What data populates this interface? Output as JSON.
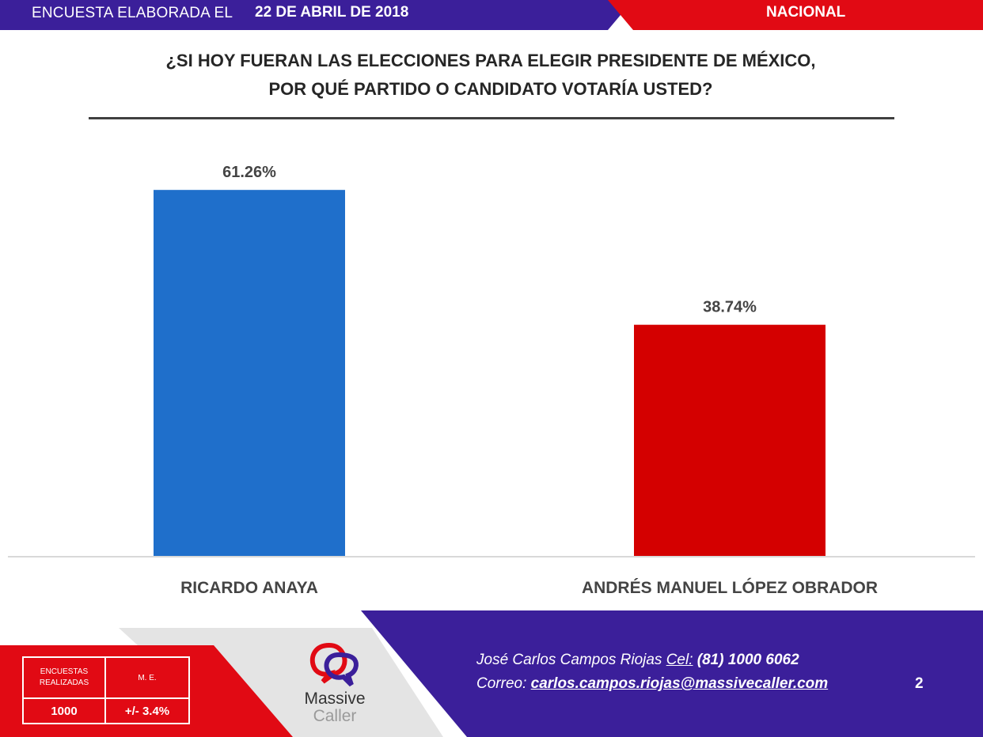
{
  "header": {
    "survey_prefix": "ENCUESTA ELABORADA EL",
    "survey_date": "22 DE ABRIL DE 2018",
    "region": "NACIONAL"
  },
  "question": {
    "line1": "¿SI HOY FUERAN LAS ELECCIONES PARA ELEGIR PRESIDENTE DE MÉXICO,",
    "line2": "POR QUÉ PARTIDO O CANDIDATO VOTARÍA USTED?"
  },
  "chart_data": {
    "type": "bar",
    "categories": [
      "RICARDO ANAYA",
      "ANDRÉS MANUEL LÓPEZ OBRADOR"
    ],
    "values": [
      61.26,
      38.74
    ],
    "value_labels": [
      "61.26%",
      "38.74%"
    ],
    "bar_colors": [
      "#1f6fcb",
      "#d40000"
    ],
    "unit": "%",
    "ylim": [
      0,
      70
    ],
    "grid": false,
    "legend": "none"
  },
  "footer": {
    "stats": {
      "surveys_label_line1": "ENCUESTAS",
      "surveys_label_line2": "REALIZADAS",
      "margin_label": "M. E.",
      "surveys_value": "1000",
      "margin_value": "+/- 3.4%"
    },
    "logo": {
      "word1": "Massive",
      "word2": "Caller",
      "icon": "chat-bubbles-logo-icon"
    },
    "contact": {
      "name": "José Carlos Campos Riojas",
      "phone_label": "Cel:",
      "phone": "(81) 1000 6062",
      "email_label": "Correo:",
      "email": "carlos.campos.riojas@massivecaller.com"
    },
    "page_number": "2"
  },
  "colors": {
    "purple": "#3b1f9a",
    "red": "#e10a14",
    "blue_bar": "#1f6fcb",
    "red_bar": "#d40000"
  }
}
